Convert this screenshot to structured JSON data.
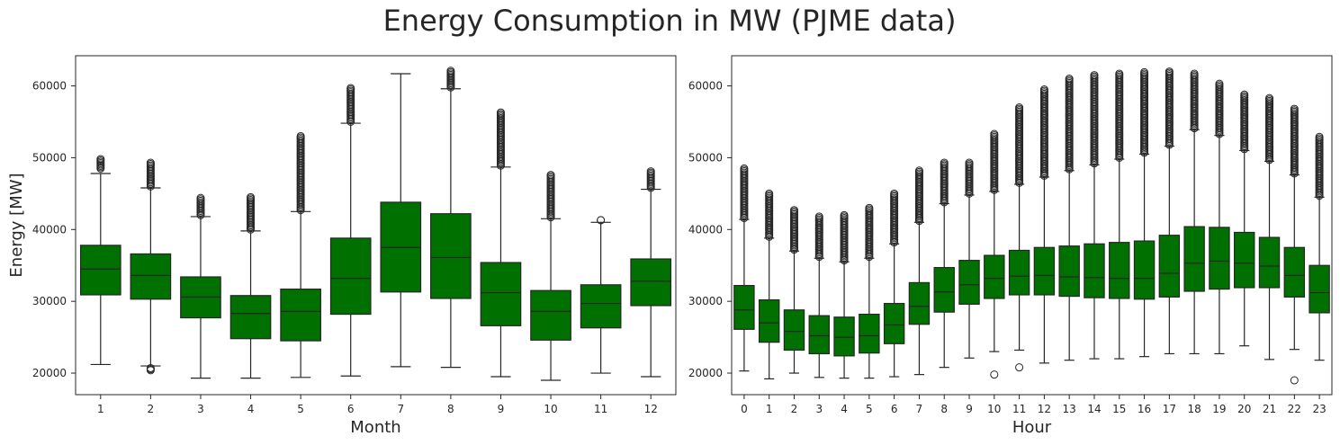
{
  "figure": {
    "title": "Energy Consumption in MW (PJME data)",
    "colors": {
      "box_fill": "#007000",
      "line": "#262626",
      "frame": "#262626",
      "background": "#ffffff"
    }
  },
  "chart_data": [
    {
      "type": "box",
      "xlabel": "Month",
      "ylabel": "Energy [MW]",
      "ylim": [
        17000,
        64200
      ],
      "yticks": [
        20000,
        30000,
        40000,
        50000,
        60000
      ],
      "ytick_labels": [
        "20000",
        "30000",
        "40000",
        "50000",
        "60000"
      ],
      "grid": false,
      "categories": [
        "1",
        "2",
        "3",
        "4",
        "5",
        "6",
        "7",
        "8",
        "9",
        "10",
        "11",
        "12"
      ],
      "boxes": [
        {
          "whislo": 21200,
          "q1": 30900,
          "med": 34500,
          "q3": 37800,
          "whishi": 47800,
          "fliers_low": [],
          "fliers_high": [
            48500,
            49800
          ]
        },
        {
          "whislo": 21000,
          "q1": 30300,
          "med": 33600,
          "q3": 36600,
          "whishi": 45800,
          "fliers_low": [
            20400,
            20700
          ],
          "fliers_high": [
            46000,
            49300
          ]
        },
        {
          "whislo": 19300,
          "q1": 27700,
          "med": 30600,
          "q3": 33400,
          "whishi": 41800,
          "fliers_low": [],
          "fliers_high": [
            42000,
            44400
          ]
        },
        {
          "whislo": 19300,
          "q1": 24800,
          "med": 28300,
          "q3": 30800,
          "whishi": 39800,
          "fliers_low": [],
          "fliers_high": [
            40000,
            44500
          ]
        },
        {
          "whislo": 19400,
          "q1": 24500,
          "med": 28600,
          "q3": 31700,
          "whishi": 42500,
          "fliers_low": [],
          "fliers_high": [
            42700,
            53000
          ]
        },
        {
          "whislo": 19600,
          "q1": 28200,
          "med": 33200,
          "q3": 38800,
          "whishi": 54800,
          "fliers_low": [],
          "fliers_high": [
            55000,
            59700
          ]
        },
        {
          "whislo": 20900,
          "q1": 31300,
          "med": 37500,
          "q3": 43800,
          "whishi": 61700,
          "fliers_low": [],
          "fliers_high": []
        },
        {
          "whislo": 20800,
          "q1": 30400,
          "med": 36100,
          "q3": 42200,
          "whishi": 59600,
          "fliers_low": [],
          "fliers_high": [
            59800,
            62100
          ]
        },
        {
          "whislo": 19500,
          "q1": 26600,
          "med": 31200,
          "q3": 35400,
          "whishi": 48700,
          "fliers_low": [],
          "fliers_high": [
            48900,
            56300
          ]
        },
        {
          "whislo": 19000,
          "q1": 24600,
          "med": 28600,
          "q3": 31500,
          "whishi": 41500,
          "fliers_low": [],
          "fliers_high": [
            41700,
            47600
          ]
        },
        {
          "whislo": 20000,
          "q1": 26300,
          "med": 29700,
          "q3": 32300,
          "whishi": 41000,
          "fliers_low": [],
          "fliers_high": [
            41300,
            41300
          ]
        },
        {
          "whislo": 19500,
          "q1": 29400,
          "med": 32800,
          "q3": 35900,
          "whishi": 45600,
          "fliers_low": [],
          "fliers_high": [
            45800,
            48100
          ]
        }
      ]
    },
    {
      "type": "box",
      "xlabel": "Hour",
      "ylabel": "",
      "ylim": [
        17000,
        64200
      ],
      "yticks": [
        20000,
        30000,
        40000,
        50000,
        60000
      ],
      "ytick_labels": [
        "20000",
        "30000",
        "40000",
        "50000",
        "60000"
      ],
      "grid": false,
      "categories": [
        "0",
        "1",
        "2",
        "3",
        "4",
        "5",
        "6",
        "7",
        "8",
        "9",
        "10",
        "11",
        "12",
        "13",
        "14",
        "15",
        "16",
        "17",
        "18",
        "19",
        "20",
        "21",
        "22",
        "23"
      ],
      "boxes": [
        {
          "whislo": 20300,
          "q1": 26100,
          "med": 28800,
          "q3": 32200,
          "whishi": 41400,
          "fliers_low": [],
          "fliers_high": [
            41600,
            48500
          ]
        },
        {
          "whislo": 19200,
          "q1": 24300,
          "med": 27000,
          "q3": 30200,
          "whishi": 38800,
          "fliers_low": [],
          "fliers_high": [
            39000,
            45000
          ]
        },
        {
          "whislo": 20000,
          "q1": 23200,
          "med": 25800,
          "q3": 28800,
          "whishi": 37000,
          "fliers_low": [],
          "fliers_high": [
            37200,
            42700
          ]
        },
        {
          "whislo": 19400,
          "q1": 22700,
          "med": 25200,
          "q3": 28000,
          "whishi": 36000,
          "fliers_low": [],
          "fliers_high": [
            36200,
            41800
          ]
        },
        {
          "whislo": 19300,
          "q1": 22400,
          "med": 25000,
          "q3": 27800,
          "whishi": 35500,
          "fliers_low": [],
          "fliers_high": [
            35700,
            42000
          ]
        },
        {
          "whislo": 19300,
          "q1": 22800,
          "med": 25200,
          "q3": 28200,
          "whishi": 36000,
          "fliers_low": [],
          "fliers_high": [
            36200,
            43000
          ]
        },
        {
          "whislo": 19500,
          "q1": 24100,
          "med": 26700,
          "q3": 29700,
          "whishi": 38000,
          "fliers_low": [],
          "fliers_high": [
            38200,
            45000
          ]
        },
        {
          "whislo": 19800,
          "q1": 26800,
          "med": 29300,
          "q3": 32600,
          "whishi": 41000,
          "fliers_low": [],
          "fliers_high": [
            41200,
            48200
          ]
        },
        {
          "whislo": 20800,
          "q1": 28500,
          "med": 31300,
          "q3": 34700,
          "whishi": 43600,
          "fliers_low": [],
          "fliers_high": [
            43800,
            49300
          ]
        },
        {
          "whislo": 22100,
          "q1": 29600,
          "med": 32300,
          "q3": 35700,
          "whishi": 44800,
          "fliers_low": [],
          "fliers_high": [
            45000,
            49300
          ]
        },
        {
          "whislo": 23000,
          "q1": 30400,
          "med": 33200,
          "q3": 36400,
          "whishi": 45300,
          "fliers_low": [
            19800
          ],
          "fliers_high": [
            45500,
            53300
          ]
        },
        {
          "whislo": 23200,
          "q1": 30900,
          "med": 33500,
          "q3": 37100,
          "whishi": 46300,
          "fliers_low": [
            20800
          ],
          "fliers_high": [
            46500,
            57000
          ]
        },
        {
          "whislo": 21400,
          "q1": 30900,
          "med": 33600,
          "q3": 37500,
          "whishi": 47300,
          "fliers_low": [],
          "fliers_high": [
            47500,
            59500
          ]
        },
        {
          "whislo": 21800,
          "q1": 30700,
          "med": 33400,
          "q3": 37700,
          "whishi": 48200,
          "fliers_low": [],
          "fliers_high": [
            48400,
            61000
          ]
        },
        {
          "whislo": 22000,
          "q1": 30500,
          "med": 33300,
          "q3": 38000,
          "whishi": 49000,
          "fliers_low": [],
          "fliers_high": [
            49200,
            61500
          ]
        },
        {
          "whislo": 22000,
          "q1": 30400,
          "med": 33200,
          "q3": 38200,
          "whishi": 49800,
          "fliers_low": [],
          "fliers_high": [
            50000,
            61700
          ]
        },
        {
          "whislo": 22300,
          "q1": 30300,
          "med": 33200,
          "q3": 38400,
          "whishi": 50500,
          "fliers_low": [],
          "fliers_high": [
            50700,
            61900
          ]
        },
        {
          "whislo": 22700,
          "q1": 30600,
          "med": 33900,
          "q3": 39200,
          "whishi": 51600,
          "fliers_low": [],
          "fliers_high": [
            51800,
            62000
          ]
        },
        {
          "whislo": 22700,
          "q1": 31400,
          "med": 35300,
          "q3": 40400,
          "whishi": 53900,
          "fliers_low": [],
          "fliers_high": [
            54100,
            61700
          ]
        },
        {
          "whislo": 22700,
          "q1": 31700,
          "med": 35600,
          "q3": 40300,
          "whishi": 53100,
          "fliers_low": [],
          "fliers_high": [
            53300,
            60300
          ]
        },
        {
          "whislo": 23800,
          "q1": 31900,
          "med": 35300,
          "q3": 39600,
          "whishi": 51000,
          "fliers_low": [],
          "fliers_high": [
            51200,
            58800
          ]
        },
        {
          "whislo": 21900,
          "q1": 31900,
          "med": 34900,
          "q3": 38900,
          "whishi": 49500,
          "fliers_low": [],
          "fliers_high": [
            49700,
            58300
          ]
        },
        {
          "whislo": 23300,
          "q1": 30600,
          "med": 33600,
          "q3": 37500,
          "whishi": 47600,
          "fliers_low": [
            19000
          ],
          "fliers_high": [
            47800,
            56800
          ]
        },
        {
          "whislo": 21800,
          "q1": 28400,
          "med": 31200,
          "q3": 35000,
          "whishi": 44500,
          "fliers_low": [],
          "fliers_high": [
            44700,
            52900
          ]
        }
      ]
    }
  ]
}
